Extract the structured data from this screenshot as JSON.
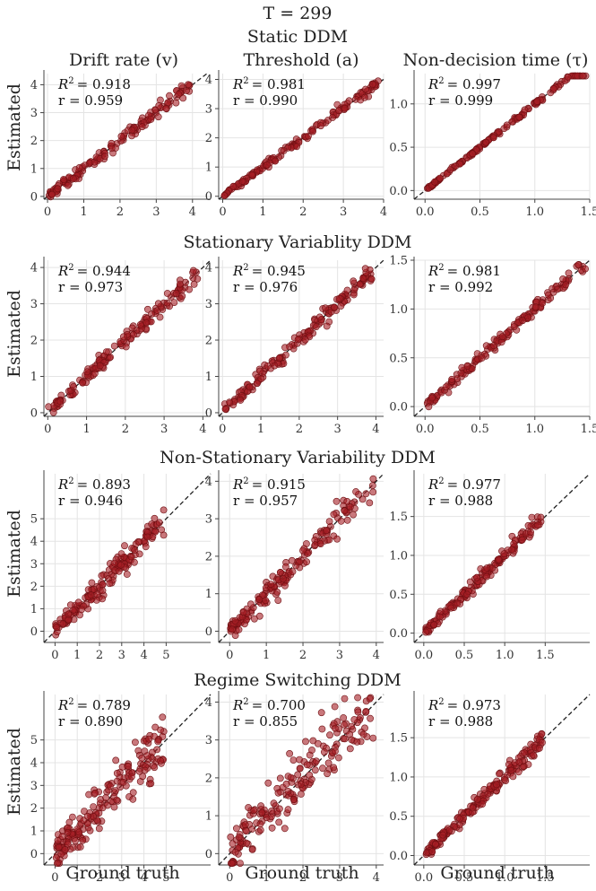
{
  "figure": {
    "title": "T = 299",
    "xlabel": "Ground truth",
    "ylabel": "Estimated",
    "columns": [
      "Drift rate (v)",
      "Threshold (a)",
      "Non-decision time (τ)"
    ]
  },
  "colors": {
    "point": "#a51e24",
    "point_edge": "#6e0f12",
    "diagonal": "#222222",
    "grid": "#e4e4e4"
  },
  "chart_data": [
    {
      "row": 0,
      "col": 0,
      "type": "scatter",
      "model": "Static DDM",
      "parameter": "Drift rate (v)",
      "r2_label": "R",
      "r2_value": "= 0.918",
      "r_label": "r = 0.959",
      "r_value": 0.959,
      "xlim": [
        -0.1,
        4.5
      ],
      "ylim": [
        -0.1,
        4.4
      ],
      "xticks": [
        0,
        1,
        2,
        3,
        4
      ],
      "yticks": [
        0,
        1,
        2,
        3,
        4
      ],
      "n_points": 140,
      "spread": 0.14,
      "seed": 11
    },
    {
      "row": 0,
      "col": 1,
      "type": "scatter",
      "model": "Static DDM",
      "parameter": "Threshold (a)",
      "r2_label": "R",
      "r2_value": "= 0.981",
      "r_label": "r = 0.990",
      "r_value": 0.99,
      "xlim": [
        -0.1,
        4.0
      ],
      "ylim": [
        -0.1,
        4.2
      ],
      "xticks": [
        0,
        1,
        2,
        3,
        4
      ],
      "yticks": [
        0,
        1,
        2,
        3,
        4
      ],
      "n_points": 140,
      "spread": 0.08,
      "seed": 12
    },
    {
      "row": 0,
      "col": 2,
      "type": "scatter",
      "model": "Static DDM",
      "parameter": "Non-decision time (τ)",
      "r2_label": "R",
      "r2_value": "= 0.997",
      "r_label": "r = 0.999",
      "r_value": 0.999,
      "xlim": [
        -0.1,
        1.5
      ],
      "ylim": [
        -0.1,
        1.35
      ],
      "xticks": [
        0.0,
        0.5,
        1.0,
        1.5
      ],
      "yticks": [
        0.0,
        0.5,
        1.0
      ],
      "n_points": 140,
      "spread": 0.012,
      "seed": 13
    },
    {
      "row": 1,
      "col": 0,
      "type": "scatter",
      "model": "Stationary Variablity DDM",
      "parameter": "Drift rate (v)",
      "r2_label": "R",
      "r2_value": "= 0.944",
      "r_label": "r = 0.973",
      "r_value": 0.973,
      "xlim": [
        -0.1,
        4.2
      ],
      "ylim": [
        -0.1,
        4.2
      ],
      "xticks": [
        0,
        1,
        2,
        3,
        4
      ],
      "yticks": [
        0,
        1,
        2,
        3,
        4
      ],
      "n_points": 150,
      "spread": 0.14,
      "seed": 21
    },
    {
      "row": 1,
      "col": 1,
      "type": "scatter",
      "model": "Stationary Variablity DDM",
      "parameter": "Threshold (a)",
      "r2_label": "R",
      "r2_value": "= 0.945",
      "r_label": "r = 0.976",
      "r_value": 0.976,
      "xlim": [
        -0.1,
        4.2
      ],
      "ylim": [
        -0.1,
        4.2
      ],
      "xticks": [
        0,
        1,
        2,
        3,
        4
      ],
      "yticks": [
        0,
        1,
        2,
        3,
        4
      ],
      "n_points": 150,
      "spread": 0.13,
      "seed": 22
    },
    {
      "row": 1,
      "col": 2,
      "type": "scatter",
      "model": "Stationary Variablity DDM",
      "parameter": "Non-decision time (τ)",
      "r2_label": "R",
      "r2_value": "= 0.981",
      "r_label": "r = 0.992",
      "r_value": 0.992,
      "xlim": [
        -0.1,
        1.5
      ],
      "ylim": [
        -0.1,
        1.5
      ],
      "xticks": [
        0.0,
        0.5,
        1.0,
        1.5
      ],
      "yticks": [
        0.0,
        0.5,
        1.0,
        1.5
      ],
      "n_points": 150,
      "spread": 0.035,
      "seed": 23
    },
    {
      "row": 2,
      "col": 0,
      "type": "scatter",
      "model": "Non-Stationary Variability DDM",
      "parameter": "Drift rate (v)",
      "r2_label": "R",
      "r2_value": "= 0.893",
      "r_label": "r = 0.946",
      "r_value": 0.946,
      "xlim": [
        -0.5,
        7.0
      ],
      "ylim": [
        -0.5,
        7.0
      ],
      "xticks": [
        0,
        1,
        2,
        3,
        4,
        5
      ],
      "yticks": [
        0,
        1,
        2,
        3,
        4,
        5
      ],
      "n_points": 160,
      "spread": 0.28,
      "seed": 31
    },
    {
      "row": 2,
      "col": 1,
      "type": "scatter",
      "model": "Non-Stationary Variability DDM",
      "parameter": "Threshold (a)",
      "r2_label": "R",
      "r2_value": "= 0.915",
      "r_label": "r = 0.957",
      "r_value": 0.957,
      "xlim": [
        -0.3,
        4.2
      ],
      "ylim": [
        -0.3,
        4.2
      ],
      "xticks": [
        0,
        1,
        2,
        3,
        4
      ],
      "yticks": [
        0,
        1,
        2,
        3,
        4
      ],
      "n_points": 160,
      "spread": 0.2,
      "seed": 32
    },
    {
      "row": 2,
      "col": 2,
      "type": "scatter",
      "model": "Non-Stationary Variability DDM",
      "parameter": "Non-decision time (τ)",
      "r2_label": "R",
      "r2_value": "= 0.977",
      "r_label": "r = 0.988",
      "r_value": 0.988,
      "xlim": [
        -0.12,
        2.05
      ],
      "ylim": [
        -0.12,
        2.05
      ],
      "xticks": [
        0.0,
        0.5,
        1.0,
        1.5
      ],
      "yticks": [
        0.0,
        0.5,
        1.0,
        1.5
      ],
      "n_points": 160,
      "spread": 0.05,
      "seed": 33
    },
    {
      "row": 3,
      "col": 0,
      "type": "scatter",
      "model": "Regime Switching DDM",
      "parameter": "Drift rate (v)",
      "r2_label": "R",
      "r2_value": "= 0.789",
      "r_label": "r = 0.890",
      "r_value": 0.89,
      "xlim": [
        -0.5,
        7.0
      ],
      "ylim": [
        -0.5,
        7.0
      ],
      "xticks": [
        0,
        1,
        2,
        3,
        4,
        5
      ],
      "yticks": [
        0,
        1,
        2,
        3,
        4,
        5
      ],
      "n_points": 180,
      "spread": 0.6,
      "seed": 41
    },
    {
      "row": 3,
      "col": 1,
      "type": "scatter",
      "model": "Regime Switching DDM",
      "parameter": "Threshold (a)",
      "r2_label": "R",
      "r2_value": "= 0.700",
      "r_label": "r = 0.855",
      "r_value": 0.855,
      "xlim": [
        -0.3,
        4.2
      ],
      "ylim": [
        -0.3,
        4.2
      ],
      "xticks": [
        0,
        1,
        2,
        3,
        4
      ],
      "yticks": [
        0,
        1,
        2,
        3,
        4
      ],
      "n_points": 180,
      "spread": 0.45,
      "seed": 42
    },
    {
      "row": 3,
      "col": 2,
      "type": "scatter",
      "model": "Regime Switching DDM",
      "parameter": "Non-decision time (τ)",
      "r2_label": "R",
      "r2_value": "= 0.973",
      "r_label": "r = 0.988",
      "r_value": 0.988,
      "xlim": [
        -0.12,
        2.05
      ],
      "ylim": [
        -0.12,
        2.05
      ],
      "xticks": [
        0.0,
        0.5,
        1.0,
        1.5
      ],
      "yticks": [
        0.0,
        0.5,
        1.0,
        1.5
      ],
      "n_points": 180,
      "spread": 0.06,
      "seed": 43
    }
  ],
  "row_titles": [
    "Static DDM",
    "Stationary Variablity DDM",
    "Non-Stationary Variability DDM",
    "Regime Switching DDM"
  ]
}
